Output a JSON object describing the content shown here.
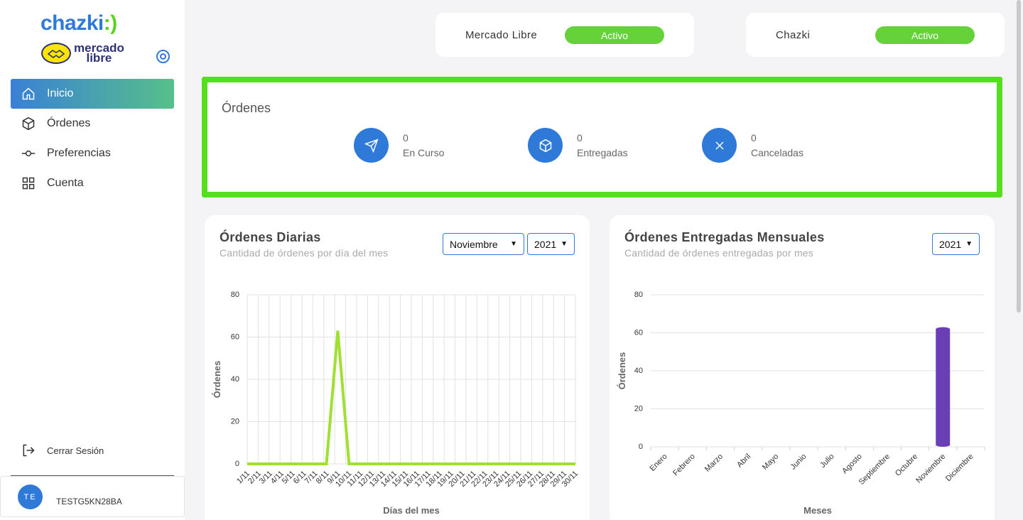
{
  "brand": {
    "chazki_logo": "chazki",
    "ml_logo_line1": "mercado",
    "ml_logo_line2": "libre"
  },
  "sidebar": {
    "items": [
      {
        "label": "Inicio",
        "icon": "home-icon"
      },
      {
        "label": "Órdenes",
        "icon": "box-icon"
      },
      {
        "label": "Preferencias",
        "icon": "commit-icon"
      },
      {
        "label": "Cuenta",
        "icon": "grid-icon"
      }
    ],
    "logout_label": "Cerrar Sesión",
    "user_initials": "TE",
    "username": "TESTG5KN28BA"
  },
  "integrations": [
    {
      "name": "Mercado Libre",
      "status": "Activo"
    },
    {
      "name": "Chazki",
      "status": "Activo"
    }
  ],
  "orders": {
    "title": "Órdenes",
    "stats": [
      {
        "value": "0",
        "label": "En Curso",
        "icon": "send-icon"
      },
      {
        "value": "0",
        "label": "Entregadas",
        "icon": "box-icon"
      },
      {
        "value": "0",
        "label": "Canceladas",
        "icon": "close-icon"
      }
    ]
  },
  "daily_chart": {
    "title": "Órdenes Diarias",
    "subtitle": "Cantidad de órdenes por día del mes",
    "month_select": "Noviembre",
    "year_select": "2021"
  },
  "monthly_chart": {
    "title": "Órdenes Entregadas Mensuales",
    "subtitle": "Cantidad de órdenes entregadas por mes",
    "year_select": "2021"
  },
  "colors": {
    "primary": "#2f7ad8",
    "accent_green": "#55e01f",
    "line_green": "#9fe031",
    "bar_purple": "#6a3fb5"
  },
  "chart_data": [
    {
      "type": "line",
      "title": "Órdenes Diarias",
      "xlabel": "Días del mes",
      "ylabel": "Órdenes",
      "ylim": [
        0,
        80
      ],
      "yticks": [
        0,
        20,
        40,
        60,
        80
      ],
      "grid": true,
      "categories": [
        "1/11",
        "2/11",
        "3/11",
        "4/11",
        "5/11",
        "6/11",
        "7/11",
        "8/11",
        "9/11",
        "10/11",
        "11/11",
        "12/11",
        "13/11",
        "14/11",
        "15/11",
        "16/11",
        "17/11",
        "18/11",
        "19/11",
        "20/11",
        "21/11",
        "22/11",
        "23/11",
        "24/11",
        "25/11",
        "26/11",
        "27/11",
        "28/11",
        "29/11",
        "30/11"
      ],
      "values": [
        0,
        0,
        0,
        0,
        0,
        0,
        0,
        0,
        63,
        0,
        0,
        0,
        0,
        0,
        0,
        0,
        0,
        0,
        0,
        0,
        0,
        0,
        0,
        0,
        0,
        0,
        0,
        0,
        0,
        0
      ]
    },
    {
      "type": "bar",
      "title": "Órdenes Entregadas Mensuales",
      "xlabel": "Meses",
      "ylabel": "Órdenes",
      "ylim": [
        0,
        80
      ],
      "yticks": [
        0,
        20,
        40,
        60,
        80
      ],
      "grid": true,
      "categories": [
        "Enero",
        "Febrero",
        "Marzo",
        "Abril",
        "Mayo",
        "Junio",
        "Julio",
        "Agosto",
        "Septiembre",
        "Octubre",
        "Noviembre",
        "Diciembre"
      ],
      "values": [
        0,
        0,
        0,
        0,
        0,
        0,
        0,
        0,
        0,
        0,
        63,
        0
      ]
    }
  ]
}
